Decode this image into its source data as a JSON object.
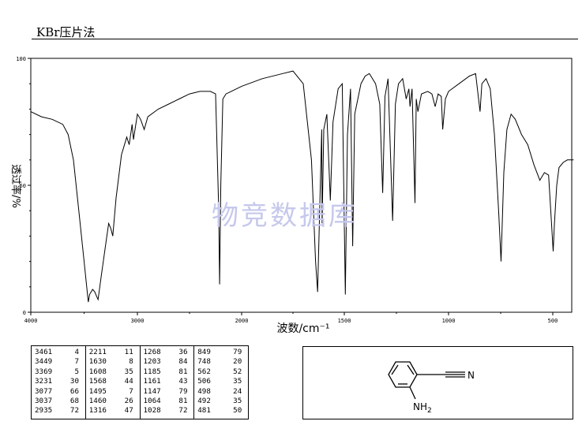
{
  "header": {
    "method": "KBr压片法"
  },
  "watermark": "物竞数据库",
  "chart_data": {
    "type": "line",
    "title": "",
    "xlabel": "波数/cm⁻¹",
    "ylabel": "透过率/%",
    "xlim": [
      4000,
      400
    ],
    "ylim": [
      0,
      100
    ],
    "x_ticks": [
      "4000",
      "3000",
      "2000",
      "1500",
      "1000",
      "500"
    ],
    "x_tick_values": [
      4000,
      3000,
      2000,
      1500,
      1000,
      500
    ],
    "y_ticks": [
      "100",
      "50",
      "0"
    ],
    "y_tick_values": [
      100,
      50,
      0
    ],
    "grid": false,
    "series": [
      {
        "values": [
          [
            4000,
            79
          ],
          [
            3900,
            77
          ],
          [
            3800,
            76
          ],
          [
            3700,
            74
          ],
          [
            3650,
            70
          ],
          [
            3600,
            60
          ],
          [
            3550,
            40
          ],
          [
            3500,
            20
          ],
          [
            3461,
            4
          ],
          [
            3449,
            7
          ],
          [
            3420,
            9
          ],
          [
            3400,
            8
          ],
          [
            3380,
            6
          ],
          [
            3369,
            5
          ],
          [
            3340,
            14
          ],
          [
            3300,
            26
          ],
          [
            3270,
            35
          ],
          [
            3250,
            33
          ],
          [
            3231,
            30
          ],
          [
            3200,
            45
          ],
          [
            3150,
            62
          ],
          [
            3100,
            69
          ],
          [
            3077,
            66
          ],
          [
            3050,
            74
          ],
          [
            3037,
            68
          ],
          [
            3000,
            78
          ],
          [
            2970,
            76
          ],
          [
            2935,
            72
          ],
          [
            2900,
            77
          ],
          [
            2800,
            80
          ],
          [
            2700,
            82
          ],
          [
            2600,
            84
          ],
          [
            2500,
            86
          ],
          [
            2400,
            87
          ],
          [
            2300,
            87
          ],
          [
            2250,
            86
          ],
          [
            2220,
            40
          ],
          [
            2211,
            11
          ],
          [
            2200,
            50
          ],
          [
            2180,
            84
          ],
          [
            2150,
            86
          ],
          [
            2100,
            87
          ],
          [
            2000,
            89
          ],
          [
            1900,
            92
          ],
          [
            1800,
            94
          ],
          [
            1750,
            95
          ],
          [
            1700,
            90
          ],
          [
            1660,
            60
          ],
          [
            1640,
            20
          ],
          [
            1630,
            8
          ],
          [
            1620,
            40
          ],
          [
            1610,
            72
          ],
          [
            1608,
            35
          ],
          [
            1600,
            72
          ],
          [
            1585,
            78
          ],
          [
            1568,
            44
          ],
          [
            1555,
            75
          ],
          [
            1530,
            88
          ],
          [
            1510,
            90
          ],
          [
            1495,
            7
          ],
          [
            1485,
            70
          ],
          [
            1470,
            88
          ],
          [
            1460,
            26
          ],
          [
            1450,
            78
          ],
          [
            1420,
            90
          ],
          [
            1400,
            93
          ],
          [
            1380,
            94
          ],
          [
            1350,
            90
          ],
          [
            1330,
            82
          ],
          [
            1316,
            47
          ],
          [
            1305,
            85
          ],
          [
            1290,
            92
          ],
          [
            1268,
            36
          ],
          [
            1255,
            82
          ],
          [
            1240,
            90
          ],
          [
            1220,
            92
          ],
          [
            1203,
            84
          ],
          [
            1190,
            88
          ],
          [
            1185,
            81
          ],
          [
            1175,
            88
          ],
          [
            1161,
            43
          ],
          [
            1155,
            84
          ],
          [
            1147,
            79
          ],
          [
            1130,
            86
          ],
          [
            1100,
            87
          ],
          [
            1080,
            86
          ],
          [
            1064,
            81
          ],
          [
            1050,
            86
          ],
          [
            1035,
            85
          ],
          [
            1028,
            72
          ],
          [
            1015,
            84
          ],
          [
            1000,
            87
          ],
          [
            950,
            90
          ],
          [
            900,
            93
          ],
          [
            870,
            94
          ],
          [
            849,
            79
          ],
          [
            840,
            90
          ],
          [
            820,
            92
          ],
          [
            800,
            88
          ],
          [
            780,
            70
          ],
          [
            760,
            40
          ],
          [
            748,
            20
          ],
          [
            735,
            55
          ],
          [
            720,
            72
          ],
          [
            700,
            78
          ],
          [
            680,
            76
          ],
          [
            650,
            70
          ],
          [
            620,
            66
          ],
          [
            590,
            58
          ],
          [
            562,
            52
          ],
          [
            540,
            55
          ],
          [
            520,
            54
          ],
          [
            506,
            35
          ],
          [
            498,
            24
          ],
          [
            492,
            35
          ],
          [
            481,
            50
          ],
          [
            470,
            57
          ],
          [
            450,
            59
          ],
          [
            430,
            60
          ],
          [
            400,
            60
          ]
        ]
      }
    ]
  },
  "peak_table": {
    "columns": [
      [
        [
          "3461",
          "4"
        ],
        [
          "3449",
          "7"
        ],
        [
          "3369",
          "5"
        ],
        [
          "3231",
          "30"
        ],
        [
          "3077",
          "66"
        ],
        [
          "3037",
          "68"
        ],
        [
          "2935",
          "72"
        ]
      ],
      [
        [
          "2211",
          "11"
        ],
        [
          "1630",
          "8"
        ],
        [
          "1608",
          "35"
        ],
        [
          "1568",
          "44"
        ],
        [
          "1495",
          "7"
        ],
        [
          "1460",
          "26"
        ],
        [
          "1316",
          "47"
        ]
      ],
      [
        [
          "1268",
          "36"
        ],
        [
          "1203",
          "84"
        ],
        [
          "1185",
          "81"
        ],
        [
          "1161",
          "43"
        ],
        [
          "1147",
          "79"
        ],
        [
          "1064",
          "81"
        ],
        [
          "1028",
          "72"
        ]
      ],
      [
        [
          "849",
          "79"
        ],
        [
          "748",
          "20"
        ],
        [
          "562",
          "52"
        ],
        [
          "506",
          "35"
        ],
        [
          "498",
          "24"
        ],
        [
          "492",
          "35"
        ],
        [
          "481",
          "50"
        ]
      ]
    ]
  },
  "structure": {
    "nitrile_label": "N",
    "amine_label": "NH",
    "amine_subscript": "2"
  }
}
